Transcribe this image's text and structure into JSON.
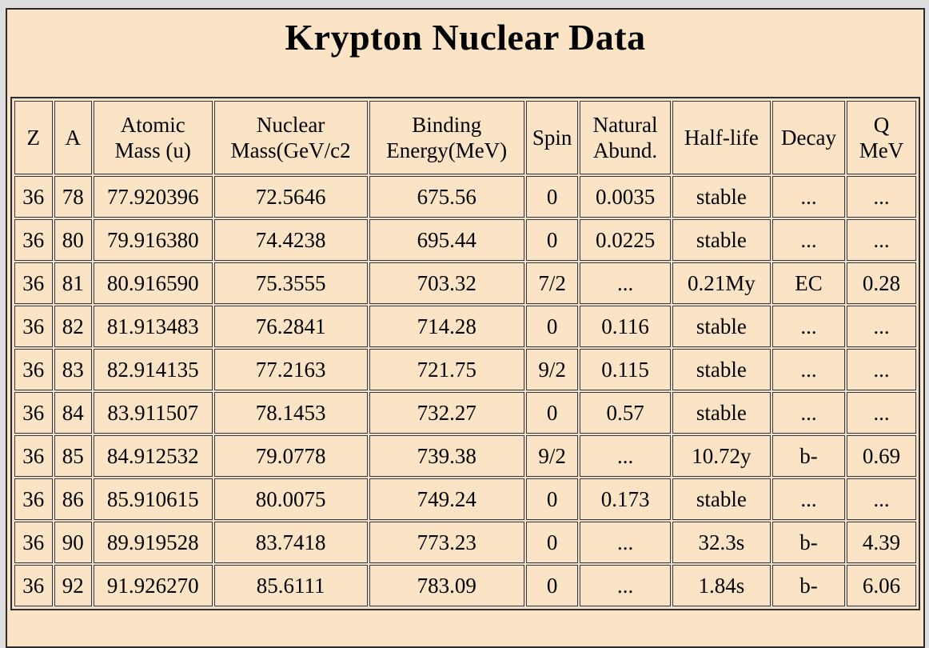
{
  "page": {
    "title": "Krypton Nuclear Data"
  },
  "colors": {
    "page_background": "#fbe3c6",
    "page_border": "#2b2b2b",
    "cell_border_dark": "#383838",
    "cell_border_light": "#d6d6d6",
    "chrome_background": "#dedede",
    "text": "#000000"
  },
  "table": {
    "headers": [
      {
        "key": "z",
        "label": "Z"
      },
      {
        "key": "a",
        "label": "A"
      },
      {
        "key": "atomic-mass",
        "label": "Atomic\nMass (u)"
      },
      {
        "key": "nuclear-mass",
        "label": "Nuclear\nMass(GeV/c2"
      },
      {
        "key": "binding-energy",
        "label": "Binding\nEnergy(MeV)"
      },
      {
        "key": "spin",
        "label": "Spin"
      },
      {
        "key": "natural-abundance",
        "label": "Natural\nAbund."
      },
      {
        "key": "half-life",
        "label": "Half-life"
      },
      {
        "key": "decay",
        "label": "Decay"
      },
      {
        "key": "q-mev",
        "label": "Q\nMeV"
      }
    ],
    "rows": [
      [
        "36",
        "78",
        "77.920396",
        "72.5646",
        "675.56",
        "0",
        "0.0035",
        "stable",
        "...",
        "..."
      ],
      [
        "36",
        "80",
        "79.916380",
        "74.4238",
        "695.44",
        "0",
        "0.0225",
        "stable",
        "...",
        "..."
      ],
      [
        "36",
        "81",
        "80.916590",
        "75.3555",
        "703.32",
        "7/2",
        "...",
        "0.21My",
        "EC",
        "0.28"
      ],
      [
        "36",
        "82",
        "81.913483",
        "76.2841",
        "714.28",
        "0",
        "0.116",
        "stable",
        "...",
        "..."
      ],
      [
        "36",
        "83",
        "82.914135",
        "77.2163",
        "721.75",
        "9/2",
        "0.115",
        "stable",
        "...",
        "..."
      ],
      [
        "36",
        "84",
        "83.911507",
        "78.1453",
        "732.27",
        "0",
        "0.57",
        "stable",
        "...",
        "..."
      ],
      [
        "36",
        "85",
        "84.912532",
        "79.0778",
        "739.38",
        "9/2",
        "...",
        "10.72y",
        "b-",
        "0.69"
      ],
      [
        "36",
        "86",
        "85.910615",
        "80.0075",
        "749.24",
        "0",
        "0.173",
        "stable",
        "...",
        "..."
      ],
      [
        "36",
        "90",
        "89.919528",
        "83.7418",
        "773.23",
        "0",
        "...",
        "32.3s",
        "b-",
        "4.39"
      ],
      [
        "36",
        "92",
        "91.926270",
        "85.6111",
        "783.09",
        "0",
        "...",
        "1.84s",
        "b-",
        "6.06"
      ]
    ]
  }
}
